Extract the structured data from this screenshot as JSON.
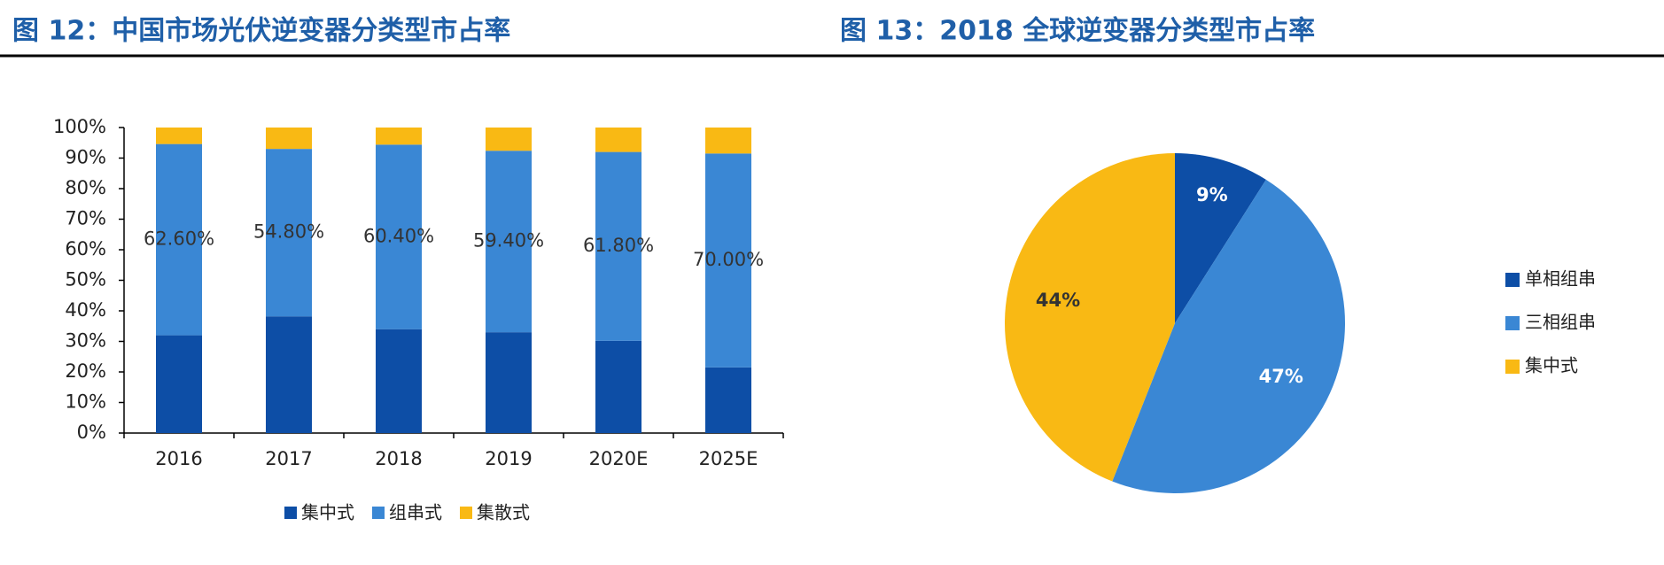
{
  "chart_data": [
    {
      "type": "bar",
      "stacked": true,
      "title": "图 12：中国市场光伏逆变器分类型市占率",
      "categories": [
        "2016",
        "2017",
        "2018",
        "2019",
        "2020E",
        "2025E"
      ],
      "series": [
        {
          "name": "集中式",
          "color": "#0d4ea6",
          "values": [
            32,
            38.2,
            34,
            33,
            30.2,
            21.5
          ]
        },
        {
          "name": "组串式",
          "color": "#3a87d4",
          "values": [
            62.6,
            54.8,
            60.4,
            59.4,
            61.8,
            70
          ],
          "value_labels": [
            "62.60%",
            "54.80%",
            "60.40%",
            "59.40%",
            "61.80%",
            "70.00%"
          ]
        },
        {
          "name": "集散式",
          "color": "#f9b914",
          "values": [
            5.4,
            7,
            5.6,
            7.6,
            8,
            8.5
          ]
        }
      ],
      "ylim": [
        0,
        100
      ],
      "yticks": [
        {
          "value": 0,
          "label": "0%"
        },
        {
          "value": 10,
          "label": "10%"
        },
        {
          "value": 20,
          "label": "20%"
        },
        {
          "value": 30,
          "label": "30%"
        },
        {
          "value": 40,
          "label": "40%"
        },
        {
          "value": 50,
          "label": "50%"
        },
        {
          "value": 60,
          "label": "60%"
        },
        {
          "value": 70,
          "label": "70%"
        },
        {
          "value": 80,
          "label": "80%"
        },
        {
          "value": 90,
          "label": "90%"
        },
        {
          "value": 100,
          "label": "100%"
        }
      ],
      "legend": "bottom"
    },
    {
      "type": "pie",
      "title": "图 13：2018 全球逆变器分类型市占率",
      "categories": [
        "单相组串",
        "三相组串",
        "集中式"
      ],
      "values": [
        9,
        47,
        44
      ],
      "value_labels": [
        "9%",
        "47%",
        "44%"
      ],
      "colors": [
        "#0d4ea6",
        "#3a87d4",
        "#f9b914"
      ],
      "legend": "right"
    }
  ]
}
